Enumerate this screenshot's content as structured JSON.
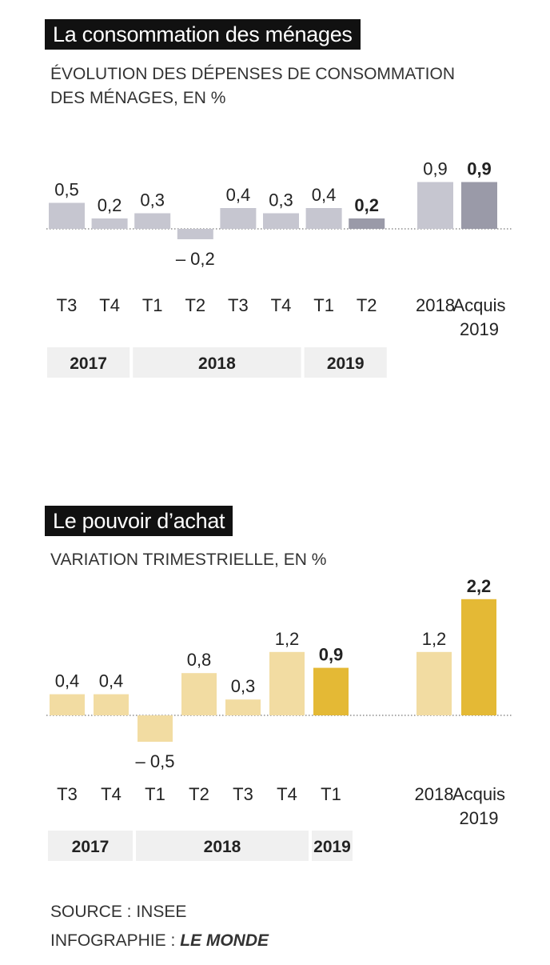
{
  "chart_data": [
    {
      "type": "bar",
      "title": "La consommation des ménages",
      "subtitle_line1": "ÉVOLUTION DES DÉPENSES DE CONSOMMATION",
      "subtitle_line2": "DES MÉNAGES, EN %",
      "quarters": {
        "categories": [
          "T3",
          "T4",
          "T1",
          "T2",
          "T3",
          "T4",
          "T1",
          "T2"
        ],
        "values": [
          0.5,
          0.2,
          0.3,
          -0.2,
          0.4,
          0.3,
          0.4,
          0.2
        ],
        "value_labels": [
          "0,5",
          "0,2",
          "0,3",
          "– 0,2",
          "0,4",
          "0,3",
          "0,4",
          "0,2"
        ],
        "highlight_index": 7
      },
      "annual": {
        "categories": [
          "2018",
          "Acquis 2019"
        ],
        "category_lines": [
          [
            "2018"
          ],
          [
            "Acquis",
            "2019"
          ]
        ],
        "values": [
          0.9,
          0.9
        ],
        "value_labels": [
          "0,9",
          "0,9"
        ],
        "highlight_index": 1
      },
      "year_groups": [
        {
          "label": "2017",
          "span": 2
        },
        {
          "label": "2018",
          "span": 4
        },
        {
          "label": "2019",
          "span": 2
        }
      ],
      "colors": {
        "bar": "#c6c6d0",
        "highlight": "#9a9aa8"
      }
    },
    {
      "type": "bar",
      "title": "Le pouvoir d’achat",
      "subtitle_line1": "VARIATION TRIMESTRIELLE, EN %",
      "subtitle_line2": "",
      "quarters": {
        "categories": [
          "T3",
          "T4",
          "T1",
          "T2",
          "T3",
          "T4",
          "T1"
        ],
        "values": [
          0.4,
          0.4,
          -0.5,
          0.8,
          0.3,
          1.2,
          0.9
        ],
        "value_labels": [
          "0,4",
          "0,4",
          "– 0,5",
          "0,8",
          "0,3",
          "1,2",
          "0,9"
        ],
        "highlight_index": 6
      },
      "annual": {
        "categories": [
          "2018",
          "Acquis 2019"
        ],
        "category_lines": [
          [
            "2018"
          ],
          [
            "Acquis",
            "2019"
          ]
        ],
        "values": [
          1.2,
          2.2
        ],
        "value_labels": [
          "1,2",
          "2,2"
        ],
        "highlight_index": 1
      },
      "year_groups": [
        {
          "label": "2017",
          "span": 2
        },
        {
          "label": "2018",
          "span": 4
        },
        {
          "label": "2019",
          "span": 1
        }
      ],
      "colors": {
        "bar": "#f2dca2",
        "highlight": "#e4b935"
      }
    }
  ],
  "footer": {
    "source": "SOURCE : INSEE",
    "credit_prefix": "INFOGRAPHIE : ",
    "credit_brand": "LE MONDE"
  }
}
